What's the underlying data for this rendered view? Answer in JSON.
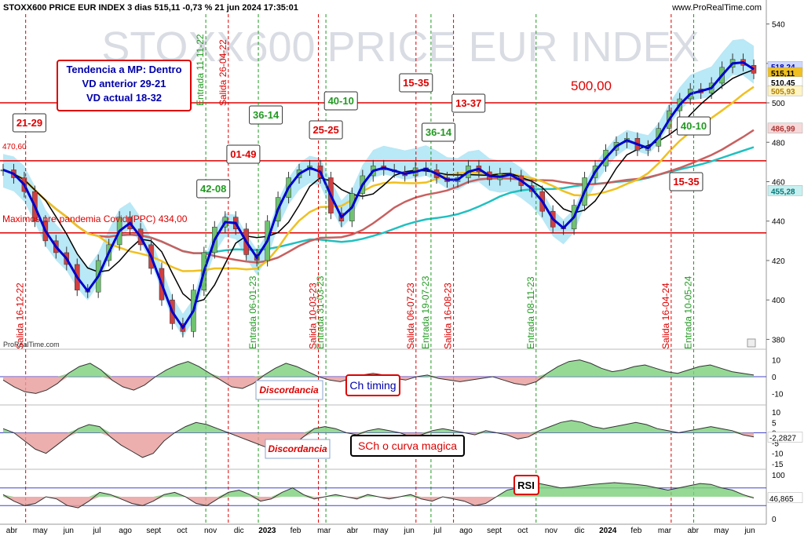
{
  "header": {
    "title": "STOXX600 PRICE EUR INDEX 3 dias 515,11 -0,73 % 21 jun 2024 17:35:01",
    "source": "www.ProRealTime.com",
    "watermark": "STOXX600 PRICE EUR INDEX",
    "credit": "ProRealTime.com",
    "info_icon": "info-icon"
  },
  "colors": {
    "price": "#0000cc",
    "ma_black": "#000000",
    "ma_yellow": "#f0c020",
    "ma_red": "#c86060",
    "ma_cyan": "#20c0c0",
    "cloud": "#7fd6ee",
    "cloud_red": "#f0a0a0",
    "level_line": "#dd0000",
    "entry_marker": "#229922",
    "exit_marker": "#dd0000",
    "osc_green": "#7ad07a",
    "osc_red": "#e89a9a"
  },
  "annotations": {
    "info_box": [
      "Tendencia a MP: Dentro",
      "VD anterior 29-21",
      "VD actual 18-32"
    ],
    "level_500": "500,00",
    "level_470": "470,60",
    "level_434": "Maximos pre-pandemia Covid (PPC) 434,00",
    "discordancia_1": "Discordancia",
    "discordancia_2": "Discordancia",
    "ch_timing": "Ch timing",
    "sch": "SCh o curva magica",
    "rsi": "RSI"
  },
  "chart_data": [
    {
      "type": "candlestick",
      "title": "STOXX600 PRICE EUR INDEX 3 dias 515,11 -0,73 % 21 jun 2024 17:35:01",
      "x_labels": [
        "abr",
        "may",
        "jun",
        "jul",
        "ago",
        "sept",
        "oct",
        "nov",
        "dic",
        "2023",
        "feb",
        "mar",
        "abr",
        "may",
        "jun",
        "jul",
        "ago",
        "sept",
        "oct",
        "nov",
        "dic",
        "2024",
        "feb",
        "mar",
        "abr",
        "may",
        "jun"
      ],
      "y_ticks": [
        380,
        400,
        420,
        440,
        460,
        480,
        500,
        520,
        540
      ],
      "ylim": [
        375,
        545
      ],
      "price_labels": {
        "last": "515,11",
        "high_label": "518,24",
        "low_label": "510,45",
        "yellow": "505,93",
        "red": "486,99",
        "cyan": "455,28"
      },
      "horizontal_levels": [
        500,
        470.6,
        434
      ],
      "close_series": [
        466,
        462,
        455,
        440,
        430,
        424,
        418,
        405,
        404,
        420,
        428,
        442,
        436,
        428,
        416,
        400,
        388,
        384,
        405,
        424,
        437,
        442,
        436,
        423,
        420,
        440,
        452,
        462,
        466,
        468,
        462,
        444,
        440,
        454,
        463,
        468,
        466,
        465,
        463,
        467,
        466,
        462,
        460,
        462,
        468,
        465,
        461,
        464,
        463,
        458,
        455,
        445,
        437,
        436,
        448,
        462,
        468,
        476,
        480,
        482,
        476,
        478,
        487,
        496,
        502,
        507,
        505,
        510,
        518,
        522,
        519,
        515
      ],
      "markers": [
        {
          "label": "Salida 16-12-22",
          "kind": "exit"
        },
        {
          "label": "Entrada 11-11-22",
          "kind": "entry"
        },
        {
          "label": "Salida 26-04-22",
          "kind": "exit"
        },
        {
          "label": "Entrada 06-01-23",
          "kind": "entry"
        },
        {
          "label": "Salida 10-03-23",
          "kind": "exit"
        },
        {
          "label": "Entrada 31-03-23",
          "kind": "entry"
        },
        {
          "label": "Salida 06-07-23",
          "kind": "exit"
        },
        {
          "label": "Entrada 19-07-23",
          "kind": "entry"
        },
        {
          "label": "Salida 16-08-23",
          "kind": "exit"
        },
        {
          "label": "Entrada 08-11-23",
          "kind": "entry"
        },
        {
          "label": "Salida 16-04-24",
          "kind": "exit"
        },
        {
          "label": "Entrada 10-05-24",
          "kind": "entry"
        }
      ],
      "score_boxes": [
        {
          "text": "21-29",
          "kind": "exit"
        },
        {
          "text": "42-08",
          "kind": "entry"
        },
        {
          "text": "01-49",
          "kind": "exit"
        },
        {
          "text": "36-14",
          "kind": "entry"
        },
        {
          "text": "25-25",
          "kind": "exit"
        },
        {
          "text": "40-10",
          "kind": "entry"
        },
        {
          "text": "15-35",
          "kind": "exit"
        },
        {
          "text": "13-37",
          "kind": "exit"
        },
        {
          "text": "36-14",
          "kind": "entry"
        },
        {
          "text": "40-10",
          "kind": "entry"
        },
        {
          "text": "15-35",
          "kind": "exit"
        }
      ]
    },
    {
      "type": "area",
      "name": "Ch timing",
      "y_ticks": [
        10,
        0,
        -10
      ],
      "values": [
        -2,
        -6,
        -9,
        -10,
        -8,
        -4,
        2,
        6,
        8,
        4,
        -2,
        -6,
        -8,
        -5,
        0,
        4,
        7,
        9,
        6,
        2,
        -2,
        -6,
        -7,
        -4,
        1,
        5,
        8,
        6,
        3,
        0,
        -2,
        -3,
        -1,
        1,
        2,
        1,
        -1,
        -2,
        0,
        1,
        -1,
        -2,
        -3,
        -2,
        -1,
        0,
        -2,
        -4,
        -5,
        -3,
        2,
        6,
        9,
        10,
        8,
        5,
        3,
        4,
        6,
        7,
        5,
        3,
        2,
        4,
        6,
        7,
        5,
        3,
        2,
        1
      ]
    },
    {
      "type": "area",
      "name": "SCh o curva magica",
      "y_ticks": [
        10,
        5,
        0,
        -5,
        -10,
        -15
      ],
      "last_value": "-2,2827",
      "values": [
        2,
        0,
        -4,
        -8,
        -10,
        -6,
        -2,
        2,
        4,
        3,
        -2,
        -6,
        -9,
        -12,
        -10,
        -4,
        0,
        3,
        5,
        4,
        2,
        0,
        -2,
        -4,
        -6,
        -8,
        -10,
        -6,
        -2,
        2,
        3,
        2,
        0,
        -1,
        1,
        2,
        1,
        0,
        -2,
        -1,
        1,
        2,
        1,
        0,
        -1,
        1,
        0,
        -1,
        -3,
        -2,
        1,
        3,
        5,
        6,
        5,
        3,
        2,
        3,
        4,
        5,
        4,
        2,
        1,
        0,
        1,
        2,
        3,
        2,
        1,
        -1,
        -2
      ]
    },
    {
      "type": "area",
      "name": "RSI",
      "y_ticks": [
        100,
        50,
        0
      ],
      "last_value": "46,865",
      "values": [
        55,
        40,
        30,
        35,
        50,
        45,
        30,
        25,
        40,
        60,
        55,
        45,
        35,
        30,
        40,
        55,
        60,
        50,
        35,
        30,
        45,
        60,
        65,
        55,
        40,
        45,
        60,
        70,
        55,
        45,
        50,
        55,
        50,
        45,
        55,
        50,
        45,
        50,
        55,
        45,
        40,
        50,
        45,
        40,
        30,
        35,
        50,
        65,
        70,
        75,
        80,
        75,
        70,
        72,
        75,
        78,
        80,
        82,
        80,
        78,
        75,
        70,
        65,
        70,
        75,
        80,
        78,
        70,
        65,
        55,
        47
      ]
    }
  ]
}
